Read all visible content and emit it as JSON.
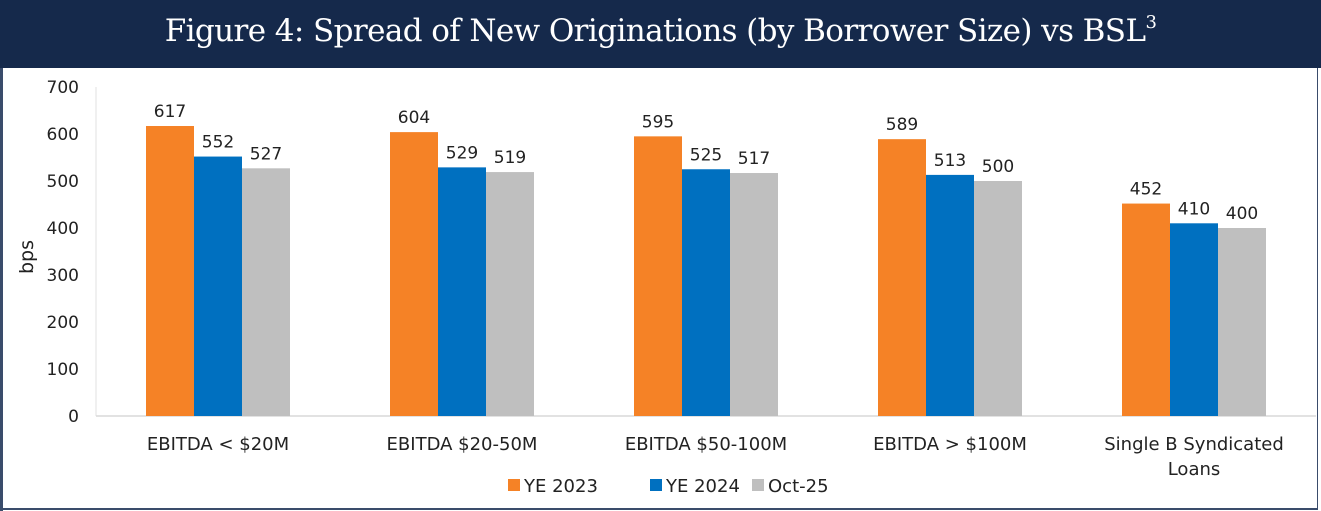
{
  "header": {
    "title": "Figure 4: Spread of New Originations (by Borrower Size) vs BSL",
    "title_superscript": "3"
  },
  "chart_data": {
    "type": "bar",
    "title": "Figure 4: Spread of New Originations (by Borrower Size) vs BSL3",
    "xlabel": "",
    "ylabel": "bps",
    "ylim": [
      0,
      700
    ],
    "yticks": [
      0,
      100,
      200,
      300,
      400,
      500,
      600,
      700
    ],
    "grid": false,
    "legend_position": "bottom-center",
    "categories": [
      [
        "EBITDA < $20M"
      ],
      [
        "EBITDA $20-50M"
      ],
      [
        "EBITDA $50-100M"
      ],
      [
        "EBITDA > $100M"
      ],
      [
        "Single B Syndicated",
        "Loans"
      ]
    ],
    "series": [
      {
        "name": "YE 2023",
        "color": "#f58226",
        "values": [
          617,
          604,
          595,
          589,
          452
        ]
      },
      {
        "name": "YE 2024",
        "color": "#0070c0",
        "values": [
          552,
          529,
          525,
          513,
          410
        ]
      },
      {
        "name": "Oct-25",
        "color": "#bfbfbf",
        "values": [
          527,
          519,
          517,
          500,
          400
        ]
      }
    ]
  }
}
